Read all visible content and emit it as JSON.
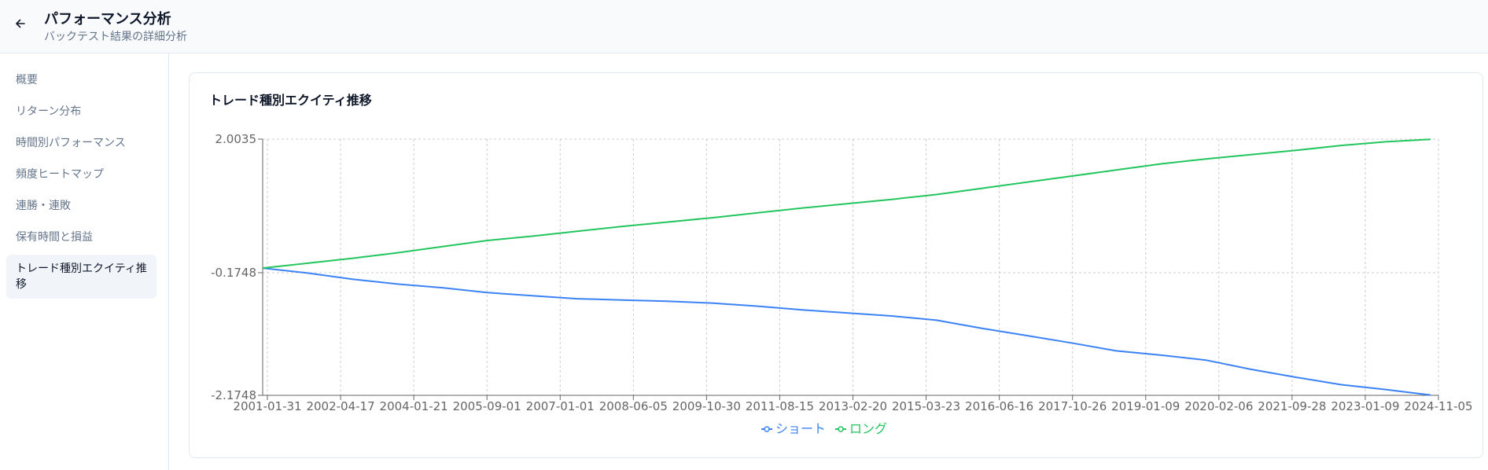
{
  "header": {
    "title": "パフォーマンス分析",
    "subtitle": "バックテスト結果の詳細分析"
  },
  "sidebar": {
    "items": [
      {
        "label": "概要",
        "active": false
      },
      {
        "label": "リターン分布",
        "active": false
      },
      {
        "label": "時間別パフォーマンス",
        "active": false
      },
      {
        "label": "頻度ヒートマップ",
        "active": false
      },
      {
        "label": "連勝・連敗",
        "active": false
      },
      {
        "label": "保有時間と損益",
        "active": false
      },
      {
        "label": "トレード種別エクイティ推移",
        "active": true
      }
    ]
  },
  "card": {
    "title": "トレード種別エクイティ推移"
  },
  "colors": {
    "short": "#3b82f6",
    "long": "#22c55e",
    "grid": "#cccccc",
    "axis": "#666666"
  },
  "chart_data": {
    "type": "line",
    "title": "トレード種別エクイティ推移",
    "xlabel": "",
    "ylabel": "",
    "y_ticks": [
      "2.0035",
      "-0.1748",
      "-2.1748"
    ],
    "ylim": [
      -2.1748,
      2.0035
    ],
    "x_ticks": [
      "2001-01-31",
      "2002-04-17",
      "2004-01-21",
      "2005-09-01",
      "2007-01-01",
      "2008-06-05",
      "2009-10-30",
      "2011-08-15",
      "2013-02-20",
      "2015-03-23",
      "2016-06-16",
      "2017-10-26",
      "2019-01-09",
      "2020-02-06",
      "2021-09-28",
      "2023-01-09",
      "2024-11-05"
    ],
    "grid": true,
    "legend": "bottom-center",
    "series": [
      {
        "name": "ショート",
        "color": "#3b82f6",
        "values": [
          -0.1,
          -0.18,
          -0.28,
          -0.36,
          -0.42,
          -0.5,
          -0.55,
          -0.6,
          -0.62,
          -0.64,
          -0.67,
          -0.72,
          -0.78,
          -0.83,
          -0.88,
          -0.95,
          -1.08,
          -1.2,
          -1.32,
          -1.45,
          -1.52,
          -1.6,
          -1.75,
          -1.88,
          -2.0,
          -2.08,
          -2.17
        ]
      },
      {
        "name": "ロング",
        "color": "#22c55e",
        "values": [
          -0.1,
          -0.02,
          0.06,
          0.15,
          0.25,
          0.35,
          0.42,
          0.5,
          0.58,
          0.65,
          0.72,
          0.8,
          0.88,
          0.95,
          1.02,
          1.1,
          1.2,
          1.3,
          1.4,
          1.5,
          1.6,
          1.68,
          1.75,
          1.82,
          1.9,
          1.96,
          2.0
        ]
      }
    ]
  }
}
